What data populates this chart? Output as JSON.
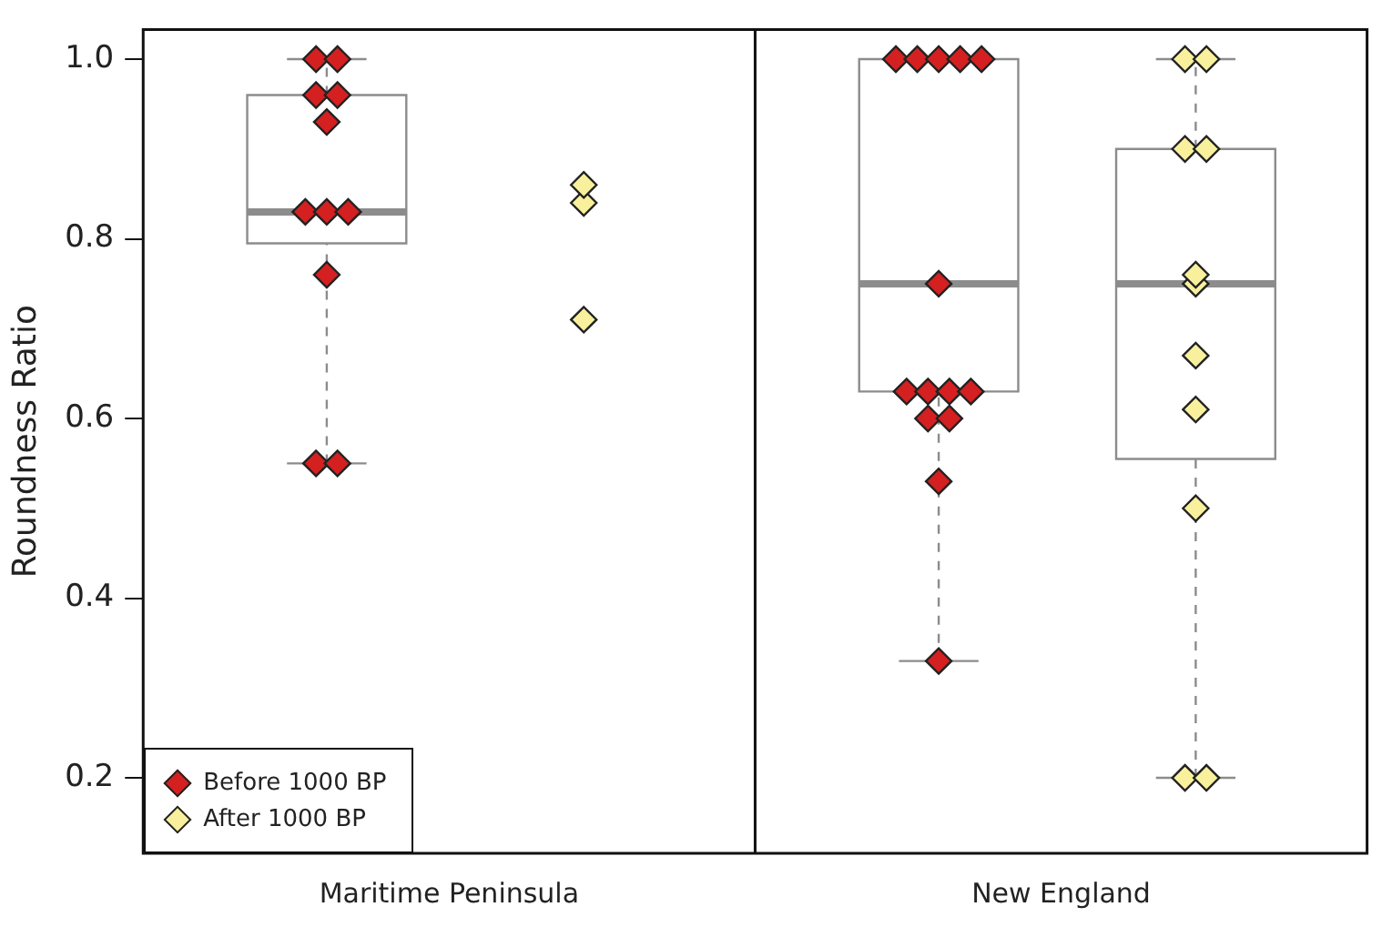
{
  "chart_data": {
    "type": "box",
    "ylabel": "Roundness Ratio",
    "categories": [
      "Maritime Peninsula",
      "New England"
    ],
    "ylim": [
      0.116,
      1.033
    ],
    "yticks": [
      0.2,
      0.4,
      0.6,
      0.8,
      {
        "value": 1,
        "label": "1.0"
      }
    ],
    "grid": false,
    "legend": "bottom left",
    "marker": "diamond",
    "series": [
      {
        "color": "#ffffff",
        "boxes": [
          {
            "low": 0.55,
            "q1": 0.795,
            "median": 0.83,
            "q3": 0.96,
            "high": 1.0
          },
          {
            "low": 0.33,
            "q1": 0.63,
            "median": 0.75,
            "q3": 1.0,
            "high": 1.0
          }
        ]
      },
      {
        "color": "#ffffff",
        "boxes": [
          null,
          {
            "low": 0.2,
            "q1": 0.555,
            "median": 0.75,
            "q3": 0.9,
            "high": 1.0
          }
        ]
      },
      {
        "type": "scatter",
        "name": "Before 1000 BP",
        "color": "#d42020",
        "x": [
          "Maritime Peninsula",
          "Maritime Peninsula",
          "Maritime Peninsula",
          "Maritime Peninsula",
          "Maritime Peninsula",
          "Maritime Peninsula",
          "Maritime Peninsula",
          "Maritime Peninsula",
          "Maritime Peninsula",
          "Maritime Peninsula",
          "Maritime Peninsula",
          "New England",
          "New England",
          "New England",
          "New England",
          "New England",
          "New England",
          "New England",
          "New England",
          "New England",
          "New England",
          "New England",
          "New England",
          "New England",
          "New England"
        ],
        "values": [
          1.0,
          1.0,
          0.96,
          0.96,
          0.93,
          0.83,
          0.83,
          0.83,
          0.76,
          0.55,
          0.55,
          1.0,
          1.0,
          1.0,
          1.0,
          1.0,
          0.75,
          0.63,
          0.63,
          0.63,
          0.63,
          0.6,
          0.6,
          0.53,
          0.33
        ]
      },
      {
        "type": "scatter",
        "name": "After 1000 BP",
        "color": "#f8f09c",
        "x": [
          "Maritime Peninsula",
          "Maritime Peninsula",
          "Maritime Peninsula",
          "New England",
          "New England",
          "New England",
          "New England",
          "New England",
          "New England",
          "New England",
          "New England",
          "New England",
          "New England",
          "New England"
        ],
        "values": [
          0.84,
          0.86,
          0.71,
          1.0,
          1.0,
          0.9,
          0.9,
          0.75,
          0.76,
          0.67,
          0.61,
          0.5,
          0.2,
          0.2
        ]
      }
    ]
  }
}
